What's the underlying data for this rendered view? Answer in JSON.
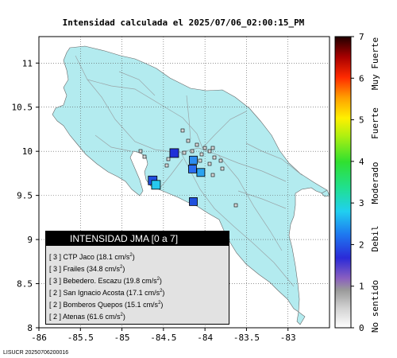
{
  "title": "Intensidad calculada el 2025/07/06_02:00:15_PM",
  "map": {
    "x_ticks": [
      "-86",
      "-85.5",
      "-85",
      "-84.5",
      "-84",
      "-83.5",
      "-83"
    ],
    "y_ticks": [
      "11",
      "10.5",
      "10",
      "9.5",
      "9",
      "8.5",
      "8"
    ],
    "x_range": [
      -86,
      -82.5
    ],
    "y_range": [
      8,
      11.3
    ],
    "land_color": "#b3ebef",
    "grid": true
  },
  "stations": [
    {
      "lon": -84.63,
      "lat": 9.67,
      "intensity": 2,
      "color": "#1f4fe0",
      "size": "large"
    },
    {
      "lon": -84.59,
      "lat": 9.62,
      "intensity": 3,
      "color": "#27c8ee",
      "size": "large"
    },
    {
      "lon": -84.37,
      "lat": 9.98,
      "intensity": 2,
      "color": "#1f30d8",
      "size": "large"
    },
    {
      "lon": -84.14,
      "lat": 9.9,
      "intensity": 3,
      "color": "#2d8df0",
      "size": "medium"
    },
    {
      "lon": -84.15,
      "lat": 9.8,
      "intensity": 3,
      "color": "#2a6cf0",
      "size": "medium"
    },
    {
      "lon": -84.05,
      "lat": 9.76,
      "intensity": 3,
      "color": "#2ba3f0",
      "size": "medium"
    },
    {
      "lon": -84.14,
      "lat": 9.43,
      "intensity": 2,
      "color": "#2050dd",
      "size": "medium"
    }
  ],
  "colorbar": {
    "ticks": [
      "0",
      "1",
      "2",
      "3",
      "4",
      "5",
      "6",
      "7"
    ],
    "categories": [
      "No sentido",
      "Debil",
      "Moderado",
      "Fuerte",
      "Muy Fuerte"
    ]
  },
  "legend": {
    "title": "INTENSIDAD JMA [0 a 7]",
    "items": [
      {
        "level": "[ 3 ]",
        "text": "CTP Jaco (18.1 cm/s",
        "sup": "2",
        "close": ")"
      },
      {
        "level": "[ 3 ]",
        "text": "Frailes (34.8 cm/s",
        "sup": "2",
        "close": ")"
      },
      {
        "level": "[ 3 ]",
        "text": "Bebedero. Escazu (19.8 cm/s",
        "sup": "2",
        "close": ")"
      },
      {
        "level": "[ 2 ]",
        "text": "San Ignacio Acosta (17.1 cm/s",
        "sup": "2",
        "close": ")"
      },
      {
        "level": "[ 2 ]",
        "text": "Bomberos Quepos (15.1 cm/s",
        "sup": "2",
        "close": ")"
      },
      {
        "level": "[ 2 ]",
        "text": "Atenas (61.6 cm/s",
        "sup": "2",
        "close": ")"
      }
    ]
  },
  "credit": "LISUCR 20250706200016"
}
